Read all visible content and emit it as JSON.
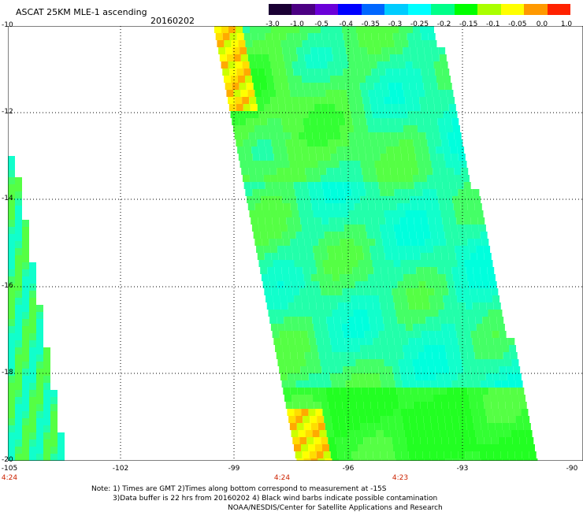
{
  "header": {
    "title": "ASCAT 25KM MLE-1 ascending",
    "date": "20160202"
  },
  "colorbar": {
    "ticks": [
      "-3.0",
      "-1.0",
      "-0.5",
      "-0.4",
      "-0.35",
      "-0.3",
      "-0.25",
      "-0.2",
      "-0.15",
      "-0.1",
      "-0.05",
      "0.0",
      "1.0"
    ],
    "colors": [
      "#1a0033",
      "#4b0082",
      "#6a00d8",
      "#0000ff",
      "#0066ff",
      "#00ccff",
      "#00ffff",
      "#00ff88",
      "#00ff00",
      "#aaff00",
      "#ffff00",
      "#ff9900",
      "#ff2200"
    ]
  },
  "map": {
    "lat_labels": [
      "-10",
      "-12",
      "-14",
      "-16",
      "-18",
      "-20"
    ],
    "lon_labels": [
      "-105",
      "-102",
      "-99",
      "-96",
      "-93",
      "-90"
    ],
    "time_labels": [
      "4:24",
      "4:24",
      "4:23"
    ]
  },
  "notes": {
    "line1": "Note: 1) Times are GMT 2)Times along bottom correspond to measurement at -15S",
    "line2": "3)Data buffer is 22 hrs from 20160202 4) Black wind barbs indicate possible contamination",
    "line3": "NOAA/NESDIS/Center for Satellite Applications and Research"
  }
}
